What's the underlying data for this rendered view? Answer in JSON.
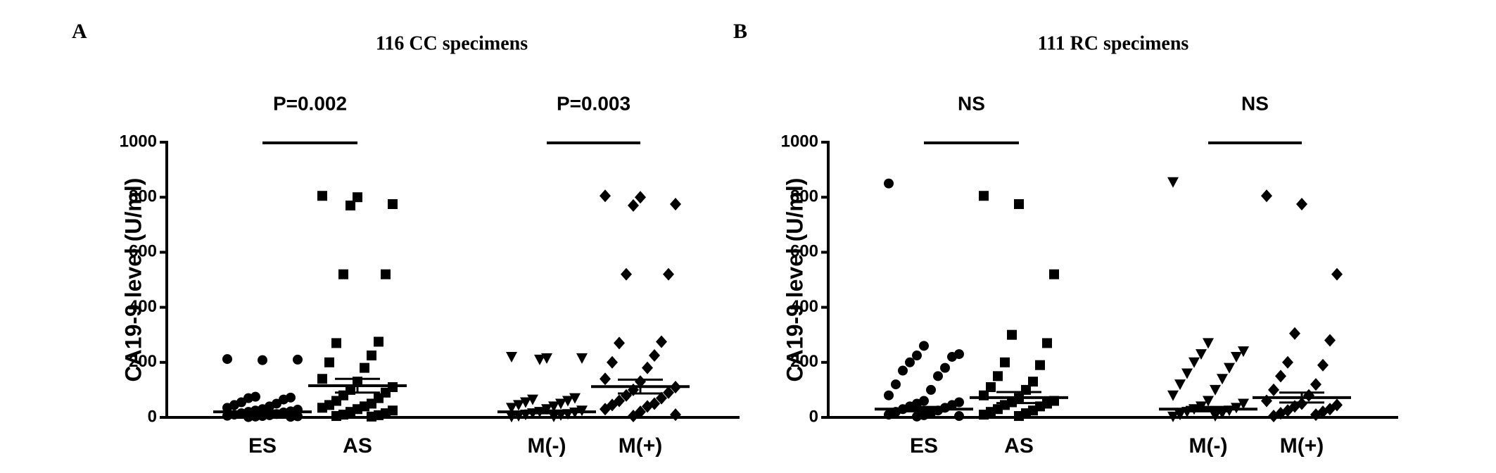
{
  "chart_data": [
    {
      "type": "dotplot",
      "panel": "A",
      "title": "116 CC specimens",
      "y_label": "CA19-9 level (U/ml)",
      "ylim": [
        0,
        1000
      ],
      "yticks": [
        0,
        200,
        400,
        600,
        800,
        1000
      ],
      "comparisons": [
        {
          "label": "P=0.002"
        },
        {
          "label": "P=0.003"
        }
      ],
      "groups": [
        {
          "label": "ES",
          "marker": "circle",
          "mean": 20,
          "sem": 5,
          "values": [
            212,
            208,
            210,
            75,
            72,
            70,
            65,
            55,
            50,
            45,
            40,
            35,
            30,
            28,
            25,
            22,
            20,
            18,
            15,
            12,
            10,
            8,
            6,
            5,
            4,
            3,
            2,
            1
          ]
        },
        {
          "label": "AS",
          "marker": "square",
          "mean": 115,
          "sem": 25,
          "values": [
            805,
            800,
            775,
            770,
            520,
            520,
            275,
            270,
            225,
            200,
            180,
            140,
            130,
            110,
            100,
            90,
            80,
            70,
            60,
            50,
            45,
            40,
            35,
            30,
            25,
            20,
            15,
            10,
            8,
            5,
            3
          ]
        },
        {
          "label": "M(-)",
          "marker": "triangle-down",
          "mean": 20,
          "sem": 5,
          "values": [
            220,
            215,
            215,
            210,
            70,
            65,
            60,
            55,
            50,
            45,
            40,
            35,
            30,
            25,
            20,
            18,
            15,
            12,
            10,
            8,
            5,
            3,
            2
          ]
        },
        {
          "label": "M(+)",
          "marker": "diamond",
          "mean": 112,
          "sem": 25,
          "values": [
            805,
            800,
            775,
            770,
            520,
            520,
            275,
            270,
            225,
            200,
            180,
            140,
            130,
            110,
            100,
            90,
            80,
            70,
            60,
            50,
            45,
            40,
            30,
            20,
            10,
            5
          ]
        }
      ]
    },
    {
      "type": "dotplot",
      "panel": "B",
      "title": "111 RC specimens",
      "y_label": "CA19-9 level (U/ml)",
      "ylim": [
        0,
        1000
      ],
      "yticks": [
        0,
        200,
        400,
        600,
        800,
        1000
      ],
      "comparisons": [
        {
          "label": "NS"
        },
        {
          "label": "NS"
        }
      ],
      "groups": [
        {
          "label": "ES",
          "marker": "circle",
          "mean": 30,
          "sem": 8,
          "values": [
            850,
            260,
            230,
            225,
            220,
            200,
            180,
            170,
            150,
            120,
            100,
            80,
            60,
            55,
            50,
            45,
            40,
            35,
            30,
            25,
            20,
            15,
            10,
            8,
            5,
            3
          ]
        },
        {
          "label": "AS",
          "marker": "square",
          "mean": 72,
          "sem": 20,
          "values": [
            805,
            775,
            520,
            300,
            270,
            200,
            190,
            150,
            130,
            110,
            100,
            80,
            70,
            60,
            55,
            50,
            45,
            40,
            30,
            25,
            20,
            15,
            10,
            5
          ]
        },
        {
          "label": "M(-)",
          "marker": "triangle-down",
          "mean": 30,
          "sem": 8,
          "values": [
            855,
            270,
            240,
            230,
            220,
            200,
            180,
            160,
            140,
            120,
            100,
            80,
            60,
            50,
            40,
            35,
            30,
            25,
            20,
            15,
            10,
            5,
            3
          ]
        },
        {
          "label": "M(+)",
          "marker": "diamond",
          "mean": 72,
          "sem": 18,
          "values": [
            805,
            775,
            520,
            305,
            280,
            200,
            190,
            150,
            120,
            100,
            80,
            60,
            50,
            45,
            40,
            30,
            25,
            20,
            15,
            10,
            5
          ]
        }
      ]
    }
  ]
}
